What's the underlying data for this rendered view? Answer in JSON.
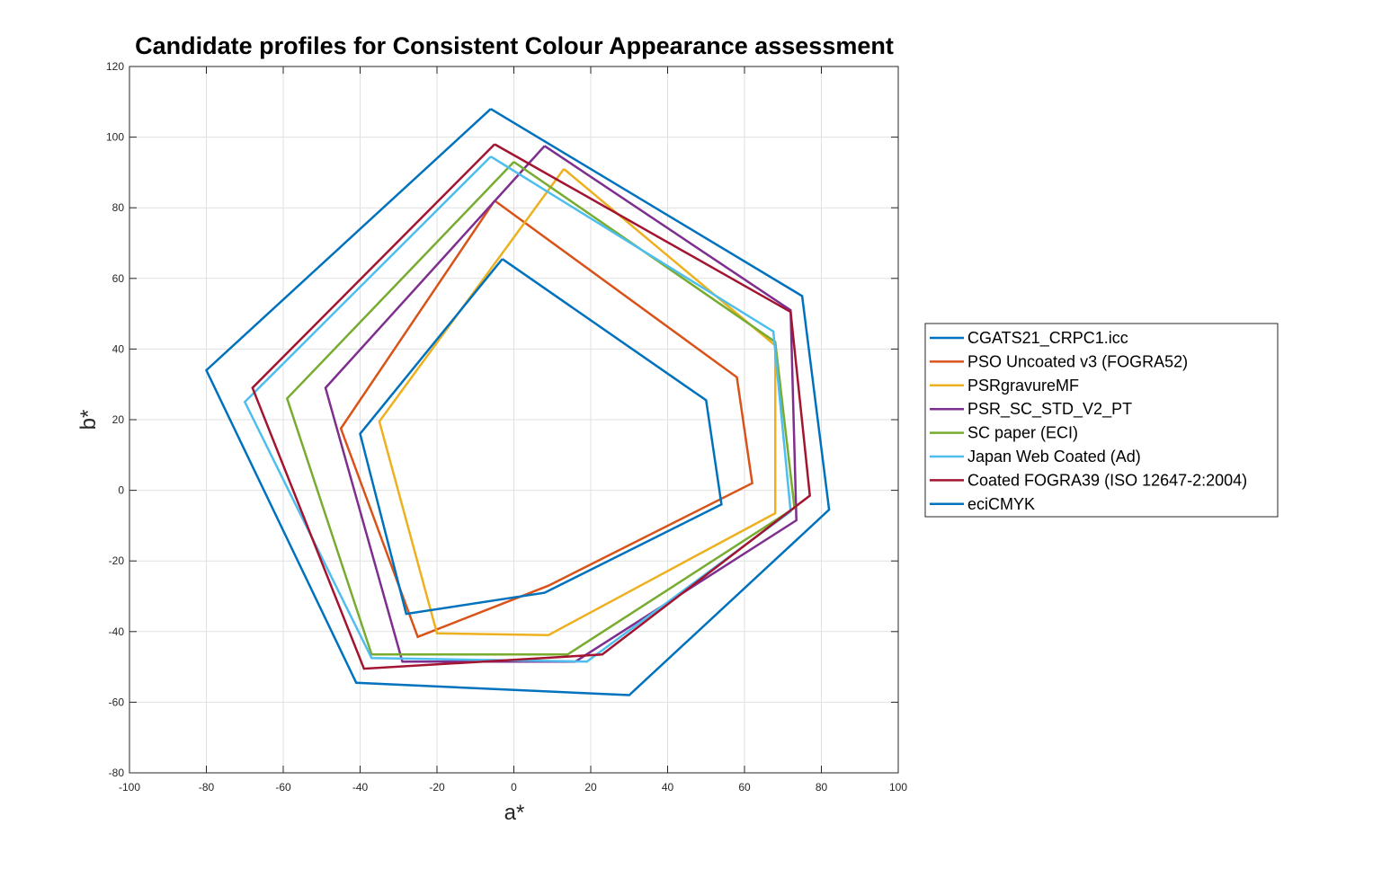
{
  "chart_data": {
    "type": "line",
    "title": "Candidate profiles for Consistent Colour Appearance assessment",
    "xlabel": "a*",
    "ylabel": "b*",
    "xlim": [
      -100,
      100
    ],
    "ylim": [
      -80,
      120
    ],
    "xticks": [
      -100,
      -80,
      -60,
      -40,
      -20,
      0,
      20,
      40,
      60,
      80,
      100
    ],
    "yticks": [
      -80,
      -60,
      -40,
      -20,
      0,
      20,
      40,
      60,
      80,
      100,
      120
    ],
    "grid": true,
    "legend_position": "outside-right",
    "series": [
      {
        "name": "CGATS21_CRPC1.icc",
        "color": "#0072BD",
        "a": [
          -6,
          75,
          82,
          30,
          -41,
          -80,
          -6
        ],
        "b": [
          108,
          55,
          -5.5,
          -58,
          -54.5,
          34,
          108
        ]
      },
      {
        "name": "PSO Uncoated v3 (FOGRA52)",
        "color": "#D95319",
        "a": [
          -5,
          58,
          62,
          9,
          -25,
          -45,
          -5
        ],
        "b": [
          82,
          32,
          2,
          -27,
          -41.5,
          17.5,
          82
        ]
      },
      {
        "name": "PSRgravureMF",
        "color": "#EDB120",
        "a": [
          13,
          68,
          68,
          9,
          -20,
          -35,
          13
        ],
        "b": [
          91,
          41,
          -6.5,
          -41,
          -40.5,
          19.5,
          91
        ]
      },
      {
        "name": "PSR_SC_STD_V2_PT",
        "color": "#7E2F8E",
        "a": [
          8,
          72,
          73.5,
          16,
          -29,
          -49,
          8
        ],
        "b": [
          97.5,
          51,
          -8.5,
          -48.5,
          -48.5,
          29,
          97.5
        ]
      },
      {
        "name": "SC paper (ECI)",
        "color": "#77AC30",
        "a": [
          0,
          68,
          73,
          14,
          -37,
          -59,
          0
        ],
        "b": [
          93,
          42,
          -5,
          -46.5,
          -46.5,
          26,
          93
        ]
      },
      {
        "name": "Japan Web Coated (Ad)",
        "color": "#4DBEEE",
        "a": [
          -6,
          67.5,
          72,
          19,
          -37,
          -70,
          -6
        ],
        "b": [
          94.5,
          45,
          -6,
          -48.5,
          -47.5,
          25,
          94.5
        ]
      },
      {
        "name": "Coated FOGRA39 (ISO 12647-2:2004)",
        "color": "#A2142F",
        "a": [
          -5,
          72,
          77,
          23,
          -39,
          -68,
          -5
        ],
        "b": [
          98,
          50.5,
          -1.5,
          -46.5,
          -50.5,
          29,
          98
        ]
      },
      {
        "name": "eciCMYK",
        "color": "#0072BD",
        "a": [
          -3,
          50,
          54,
          8,
          -28,
          -40,
          -3
        ],
        "b": [
          65.5,
          25.5,
          -4,
          -29,
          -35,
          16,
          65.5
        ]
      }
    ]
  }
}
